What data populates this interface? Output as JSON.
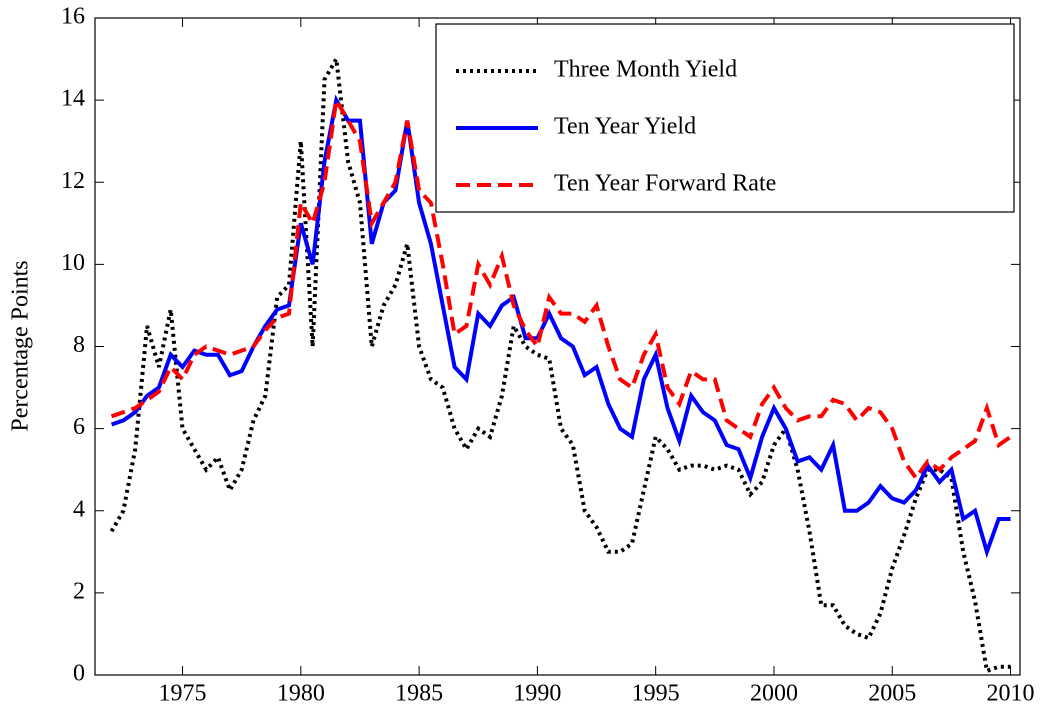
{
  "chart_data": {
    "type": "line",
    "y_label": "Percentage Points",
    "x": [
      1972,
      1972.5,
      1973,
      1973.5,
      1974,
      1974.5,
      1975,
      1975.5,
      1976,
      1976.5,
      1977,
      1977.5,
      1978,
      1978.5,
      1979,
      1979.5,
      1980,
      1980.5,
      1981,
      1981.5,
      1982,
      1982.5,
      1983,
      1983.5,
      1984,
      1984.5,
      1985,
      1985.5,
      1986,
      1986.5,
      1987,
      1987.5,
      1988,
      1988.5,
      1989,
      1989.5,
      1990,
      1990.5,
      1991,
      1991.5,
      1992,
      1992.5,
      1993,
      1993.5,
      1994,
      1994.5,
      1995,
      1995.5,
      1996,
      1996.5,
      1997,
      1997.5,
      1998,
      1998.5,
      1999,
      1999.5,
      2000,
      2000.5,
      2001,
      2001.5,
      2002,
      2002.5,
      2003,
      2003.5,
      2004,
      2004.5,
      2005,
      2005.5,
      2006,
      2006.5,
      2007,
      2007.5,
      2008,
      2008.5,
      2009,
      2009.5,
      2010
    ],
    "series": [
      {
        "name": "Three Month Yield",
        "color": "#000000",
        "dash": "dotted",
        "values": [
          3.5,
          4.0,
          5.5,
          8.5,
          7.5,
          8.9,
          6.0,
          5.5,
          5.0,
          5.3,
          4.5,
          5.0,
          6.2,
          6.8,
          9.2,
          9.5,
          13.0,
          8.0,
          14.5,
          15.0,
          12.5,
          11.5,
          8.0,
          9.0,
          9.5,
          10.5,
          8.0,
          7.2,
          7.0,
          6.0,
          5.5,
          6.0,
          5.8,
          6.8,
          8.5,
          8.0,
          7.8,
          7.7,
          6.0,
          5.6,
          4.0,
          3.6,
          3.0,
          3.0,
          3.2,
          4.5,
          5.8,
          5.5,
          5.0,
          5.1,
          5.1,
          5.0,
          5.1,
          5.0,
          4.4,
          4.7,
          5.6,
          6.0,
          5.0,
          3.5,
          1.7,
          1.7,
          1.2,
          1.0,
          0.9,
          1.5,
          2.6,
          3.4,
          4.3,
          5.0,
          5.0,
          4.8,
          3.0,
          1.8,
          0.1,
          0.2,
          0.2
        ]
      },
      {
        "name": "Ten Year Yield",
        "color": "#0000ff",
        "dash": "solid",
        "values": [
          6.1,
          6.2,
          6.4,
          6.8,
          7.0,
          7.8,
          7.5,
          7.9,
          7.8,
          7.8,
          7.3,
          7.4,
          8.0,
          8.5,
          8.9,
          9.0,
          11.0,
          10.0,
          12.5,
          14.0,
          13.5,
          13.5,
          10.5,
          11.5,
          11.8,
          13.5,
          11.5,
          10.5,
          9.0,
          7.5,
          7.2,
          8.8,
          8.5,
          9.0,
          9.2,
          8.2,
          8.2,
          8.8,
          8.2,
          8.0,
          7.3,
          7.5,
          6.6,
          6.0,
          5.8,
          7.2,
          7.8,
          6.5,
          5.7,
          6.8,
          6.4,
          6.2,
          5.6,
          5.5,
          4.8,
          5.8,
          6.5,
          6.0,
          5.2,
          5.3,
          5.0,
          5.6,
          4.0,
          4.0,
          4.2,
          4.6,
          4.3,
          4.2,
          4.5,
          5.1,
          4.7,
          5.0,
          3.8,
          4.0,
          3.0,
          3.8,
          3.8
        ]
      },
      {
        "name": "Ten Year Forward Rate",
        "color": "#ff0000",
        "dash": "dashed",
        "values": [
          6.3,
          6.4,
          6.5,
          6.7,
          6.9,
          7.5,
          7.2,
          7.8,
          8.0,
          7.9,
          7.8,
          7.9,
          8.0,
          8.4,
          8.7,
          8.8,
          11.5,
          11.0,
          12.0,
          14.0,
          13.5,
          13.0,
          11.0,
          11.5,
          12.0,
          13.5,
          11.8,
          11.5,
          10.0,
          8.3,
          8.5,
          10.0,
          9.5,
          10.2,
          9.0,
          8.4,
          8.0,
          9.2,
          8.8,
          8.8,
          8.6,
          9.0,
          8.0,
          7.2,
          7.0,
          7.8,
          8.3,
          7.0,
          6.6,
          7.4,
          7.2,
          7.2,
          6.2,
          6.0,
          5.8,
          6.6,
          7.0,
          6.5,
          6.2,
          6.3,
          6.3,
          6.7,
          6.6,
          6.2,
          6.5,
          6.4,
          6.0,
          5.2,
          4.8,
          5.2,
          5.0,
          5.3,
          5.5,
          5.7,
          6.5,
          5.6,
          5.8
        ]
      }
    ],
    "xlim": [
      1971.3,
      2010.4
    ],
    "xticks": [
      1975,
      1980,
      1985,
      1990,
      1995,
      2000,
      2005,
      2010
    ],
    "ylim": [
      0,
      16
    ],
    "yticks": [
      0,
      2,
      4,
      6,
      8,
      10,
      12,
      14,
      16
    ],
    "legend": "upper right"
  }
}
